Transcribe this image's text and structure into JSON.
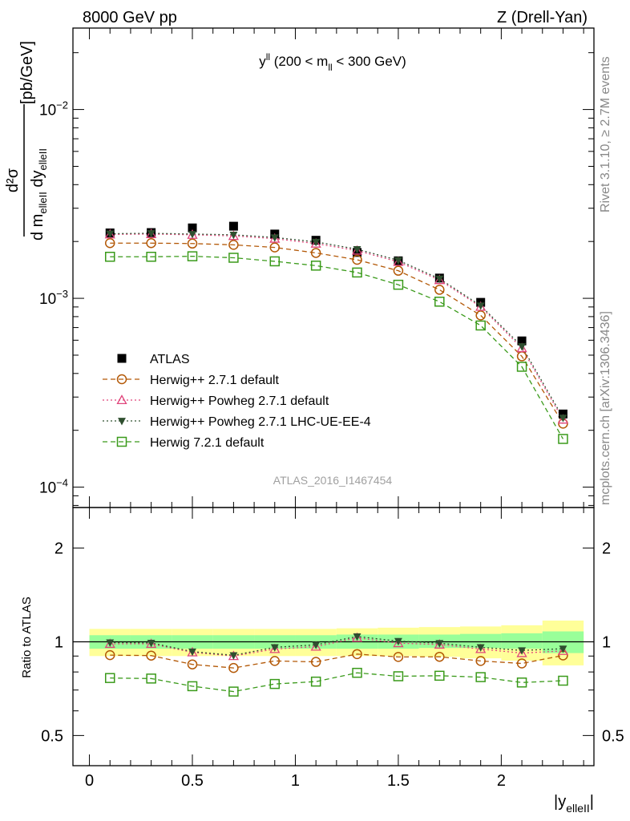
{
  "header": {
    "left": "8000 GeV pp",
    "right": "Z (Drell-Yan)",
    "side_rivet": "Rivet 3.1.10, ≥ 2.7M events",
    "side_mcplots": "mcplots.cern.ch [arXiv:1306.3436]",
    "watermark": "ATLAS_2016_I1467454"
  },
  "chart_data": [
    {
      "type": "scatter",
      "title": "y^ll (200 < m_ll < 300 GeV)",
      "title_parts": {
        "main": "y",
        "sup": "ll",
        "rest1": " (200 < m",
        "sub": "ll",
        "rest2": " < 300 GeV)"
      },
      "ylabel": "d²σ / d m_elleII dy_elleII [pb/GeV]",
      "ylabel_parts": {
        "unit": "[pb/GeV]",
        "num": "d²σ",
        "den": "d m",
        "den_sub": "elleII",
        "den2": " dy",
        "den2_sub": "elleII"
      },
      "yscale": "log",
      "ylim": [
        7.8e-05,
        0.027
      ],
      "xlim": [
        -0.08,
        2.45
      ],
      "yticks": [
        {
          "value": 0.01,
          "base": "10",
          "exp": "−2"
        },
        {
          "value": 0.001,
          "base": "10",
          "exp": "−3"
        },
        {
          "value": 0.0001,
          "base": "10",
          "exp": "−4"
        }
      ],
      "legend_position": "center-left",
      "x": [
        0.1,
        0.3,
        0.5,
        0.7,
        0.9,
        1.1,
        1.3,
        1.5,
        1.7,
        1.9,
        2.1,
        2.3
      ],
      "series": [
        {
          "name": "ATLAS",
          "color": "#000000",
          "marker": "filled-square",
          "values": [
            0.00222,
            0.00223,
            0.00236,
            0.00241,
            0.00219,
            0.00203,
            0.00175,
            0.00158,
            0.00128,
            0.000952,
            0.000595,
            0.000244
          ]
        },
        {
          "name": "Herwig++ 2.7.1 default",
          "color": "#b35806",
          "marker": "open-circle",
          "linestyle": "dashed",
          "values": [
            0.00196,
            0.00196,
            0.00195,
            0.00192,
            0.00186,
            0.00174,
            0.0016,
            0.0014,
            0.00111,
            0.000812,
            0.000493,
            0.000217
          ]
        },
        {
          "name": "Herwig++ Powheg 2.7.1 default",
          "color": "#e0457b",
          "marker": "open-triangle",
          "linestyle": "dotted",
          "values": [
            0.00218,
            0.00219,
            0.00217,
            0.00214,
            0.00207,
            0.00195,
            0.00179,
            0.00156,
            0.00125,
            0.000902,
            0.000545,
            0.000228
          ]
        },
        {
          "name": "Herwig++ Powheg 2.7.1 LHC-UE-EE-4",
          "color": "#2f4f2f",
          "marker": "filled-triangle-down",
          "linestyle": "dotted",
          "values": [
            0.0022,
            0.00221,
            0.00219,
            0.00217,
            0.0021,
            0.00199,
            0.00182,
            0.00159,
            0.00127,
            0.000915,
            0.000557,
            0.000233
          ]
        },
        {
          "name": "Herwig 7.2.1 default",
          "color": "#3a9a1a",
          "marker": "open-square",
          "linestyle": "dashed",
          "values": [
            0.00166,
            0.00166,
            0.00167,
            0.00164,
            0.00157,
            0.00149,
            0.00137,
            0.00118,
            0.00096,
            0.000718,
            0.000434,
            0.00018
          ]
        }
      ]
    },
    {
      "type": "scatter",
      "ylabel": "Ratio to ATLAS",
      "xlabel": "|y_elleII|",
      "xlabel_parts": {
        "main": "|y",
        "sub": "elleII",
        "end": "|"
      },
      "yscale": "log",
      "ylim": [
        0.4,
        2.7
      ],
      "xlim": [
        -0.08,
        2.45
      ],
      "xticks": [
        0,
        0.5,
        1,
        1.5,
        2
      ],
      "yticks": [
        0.5,
        1,
        2
      ],
      "reference_line": 1,
      "x": [
        0.1,
        0.3,
        0.5,
        0.7,
        0.9,
        1.1,
        1.3,
        1.5,
        1.7,
        1.9,
        2.1,
        2.3
      ],
      "bands": {
        "x_edges": [
          0,
          0.2,
          0.4,
          0.6,
          0.8,
          1.0,
          1.2,
          1.4,
          1.6,
          1.8,
          2.0,
          2.2,
          2.4
        ],
        "inner_color": "#99ff99",
        "outer_color": "#ffff99",
        "inner": [
          [
            0.95,
            1.05
          ],
          [
            0.95,
            1.05
          ],
          [
            0.95,
            1.05
          ],
          [
            0.95,
            1.05
          ],
          [
            0.95,
            1.05
          ],
          [
            0.95,
            1.05
          ],
          [
            0.95,
            1.055
          ],
          [
            0.95,
            1.055
          ],
          [
            0.955,
            1.055
          ],
          [
            0.955,
            1.06
          ],
          [
            0.95,
            1.065
          ],
          [
            0.92,
            1.08
          ]
        ],
        "outer": [
          [
            0.9,
            1.1
          ],
          [
            0.9,
            1.1
          ],
          [
            0.9,
            1.1
          ],
          [
            0.9,
            1.1
          ],
          [
            0.9,
            1.1
          ],
          [
            0.9,
            1.1
          ],
          [
            0.9,
            1.105
          ],
          [
            0.9,
            1.11
          ],
          [
            0.895,
            1.115
          ],
          [
            0.885,
            1.12
          ],
          [
            0.87,
            1.13
          ],
          [
            0.84,
            1.17
          ]
        ]
      },
      "series": [
        {
          "name": "Herwig++ 2.7.1 default",
          "color": "#b35806",
          "marker": "open-circle",
          "linestyle": "dashed",
          "values": [
            0.906,
            0.903,
            0.846,
            0.824,
            0.868,
            0.862,
            0.913,
            0.894,
            0.895,
            0.868,
            0.852,
            0.904
          ]
        },
        {
          "name": "Herwig++ Powheg 2.7.1 default",
          "color": "#e0457b",
          "marker": "open-triangle",
          "linestyle": "dotted",
          "values": [
            0.985,
            0.985,
            0.925,
            0.9,
            0.948,
            0.965,
            1.03,
            0.99,
            0.98,
            0.948,
            0.92,
            0.935
          ]
        },
        {
          "name": "Herwig++ Powheg 2.7.1 LHC-UE-EE-4",
          "color": "#2f4f2f",
          "marker": "filled-triangle-down",
          "linestyle": "dotted",
          "values": [
            0.995,
            0.992,
            0.93,
            0.905,
            0.96,
            0.978,
            1.04,
            1.005,
            0.99,
            0.96,
            0.938,
            0.95
          ]
        },
        {
          "name": "Herwig 7.2.1 default",
          "color": "#3a9a1a",
          "marker": "open-square",
          "linestyle": "dashed",
          "values": [
            0.765,
            0.762,
            0.72,
            0.692,
            0.732,
            0.745,
            0.795,
            0.775,
            0.778,
            0.77,
            0.74,
            0.75
          ]
        }
      ]
    }
  ]
}
